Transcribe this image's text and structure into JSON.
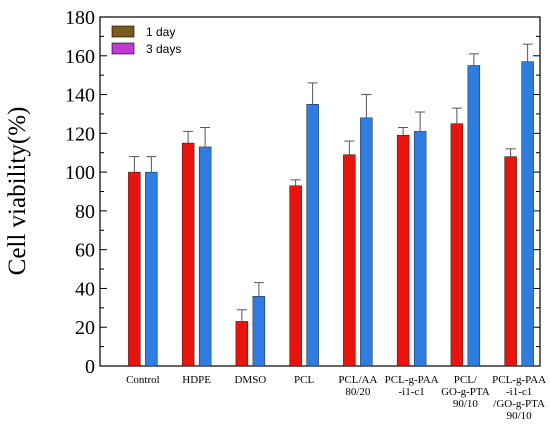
{
  "chart_data": {
    "type": "bar",
    "title": "",
    "xlabel": "",
    "ylabel": "Cell viability(%)",
    "ylim": [
      0,
      180
    ],
    "yticks": [
      "0",
      "20",
      "40",
      "60",
      "80",
      "100",
      "120",
      "140",
      "160",
      "180"
    ],
    "categories": [
      [
        "Control"
      ],
      [
        "HDPE"
      ],
      [
        "DMSO"
      ],
      [
        "PCL"
      ],
      [
        "PCL/AA",
        "80/20"
      ],
      [
        "PCL-g-PAA",
        "-i1-c1"
      ],
      [
        "PCL/",
        "GO-g-PTA",
        "90/10"
      ],
      [
        "PCL-g-PAA",
        "-i1-c1",
        "/GO-g-PTA",
        "90/10"
      ]
    ],
    "series": [
      {
        "name": "1 day",
        "legend_color": "#7a5a1e",
        "bar_color": "#e8150f",
        "values": [
          100,
          115,
          23,
          93,
          109,
          119,
          125,
          108
        ],
        "errors": [
          8,
          6,
          6,
          3,
          7,
          4,
          8,
          4
        ]
      },
      {
        "name": "3 days",
        "legend_color": "#c23ad6",
        "bar_color": "#2f7de1",
        "values": [
          100,
          113,
          36,
          135,
          128,
          121,
          155,
          157
        ],
        "errors": [
          8,
          10,
          7,
          11,
          12,
          10,
          6,
          9
        ]
      }
    ],
    "grid": false,
    "legend_position": "top-left"
  }
}
